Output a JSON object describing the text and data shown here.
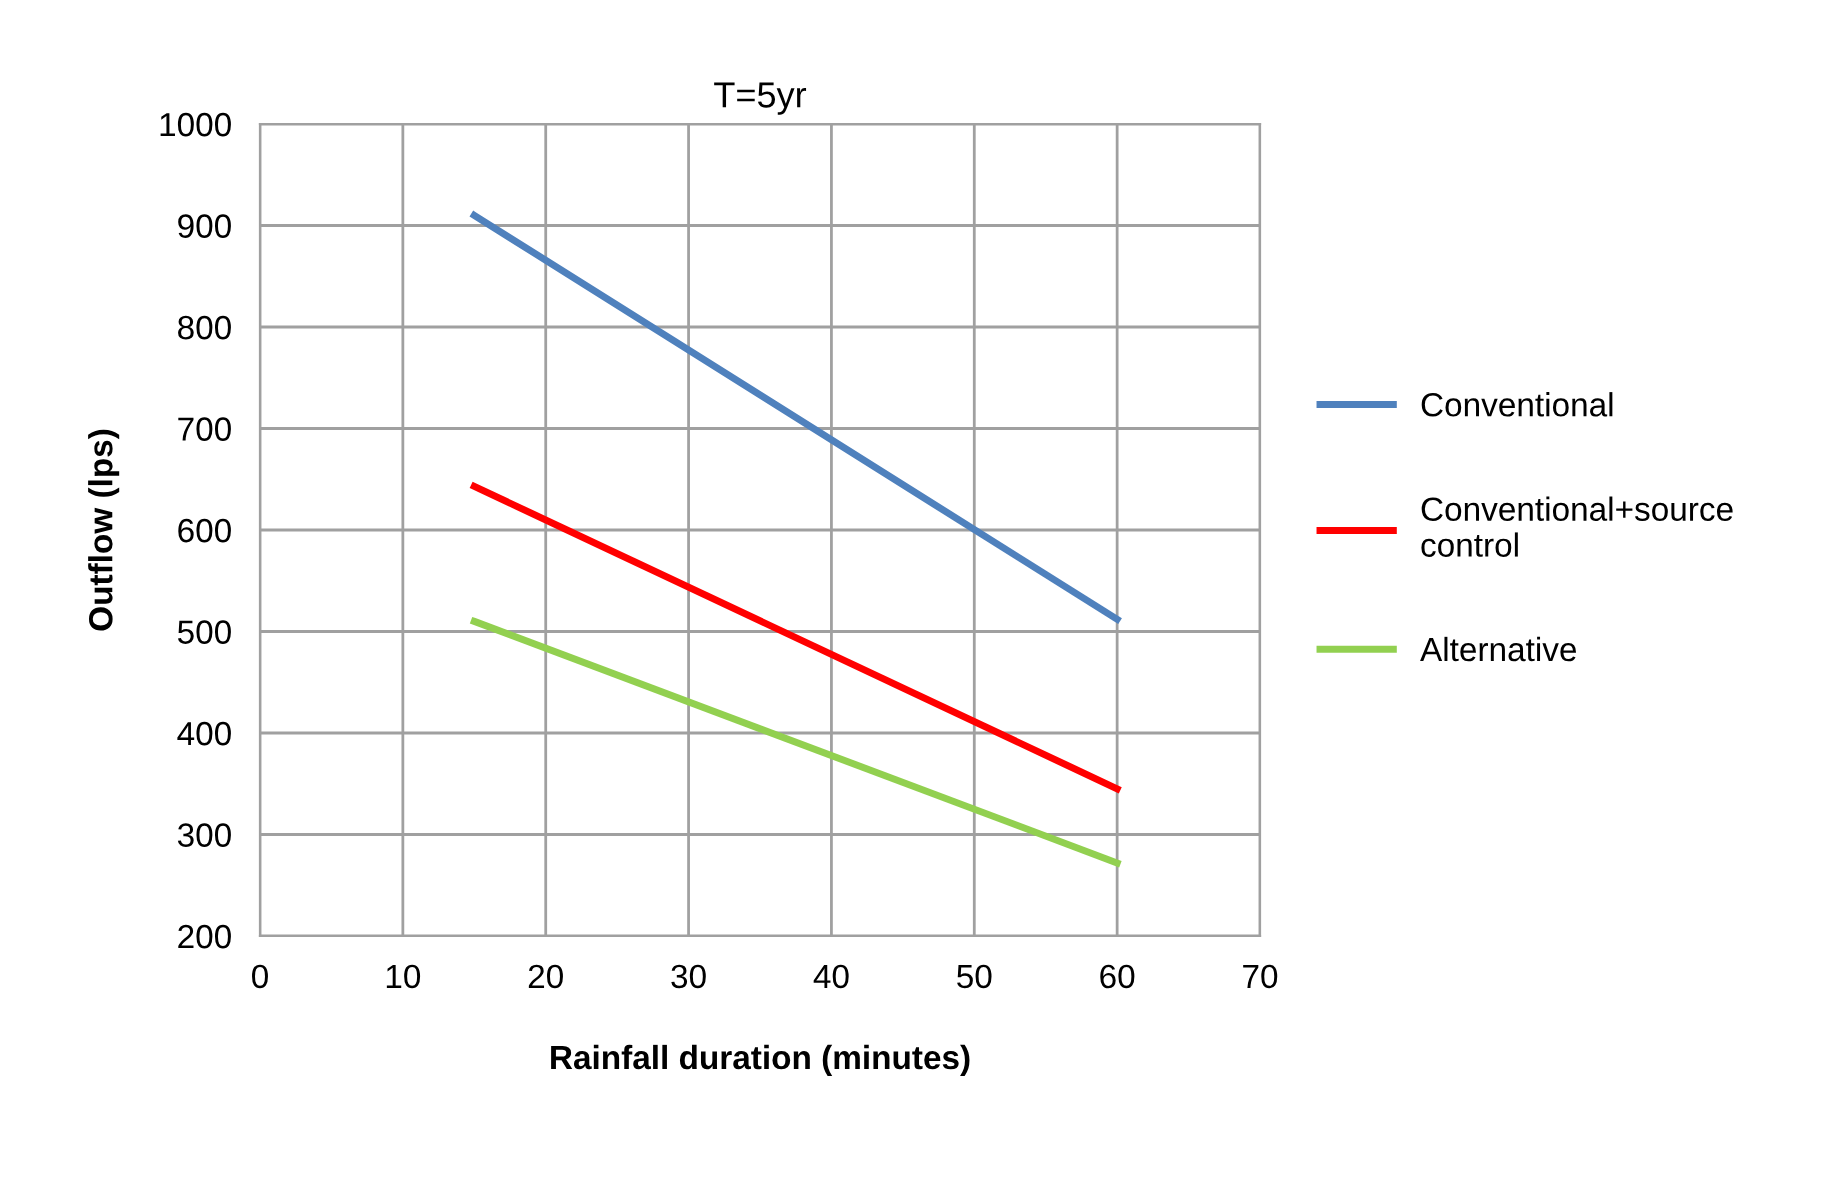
{
  "chart_data": {
    "type": "line",
    "title": "T=5yr",
    "xlabel": "Rainfall duration (minutes)",
    "ylabel": "Outflow (lps)",
    "xlim": [
      0,
      70
    ],
    "xticks": [
      0,
      10,
      20,
      30,
      40,
      50,
      60,
      70
    ],
    "ylim": [
      200,
      1000
    ],
    "yticks": [
      200,
      300,
      400,
      500,
      600,
      700,
      800,
      900,
      1000
    ],
    "x": [
      15,
      60
    ],
    "grid": true,
    "legend": "right",
    "marker": "none",
    "series": [
      {
        "name": "Conventional",
        "color": "#4f81bd",
        "values": [
          910,
          512
        ]
      },
      {
        "name": "Conventional+source control",
        "color": "#ff0000",
        "values": [
          643,
          345
        ]
      },
      {
        "name": "Alternative",
        "color": "#92d050",
        "values": [
          510,
          272
        ]
      }
    ]
  }
}
